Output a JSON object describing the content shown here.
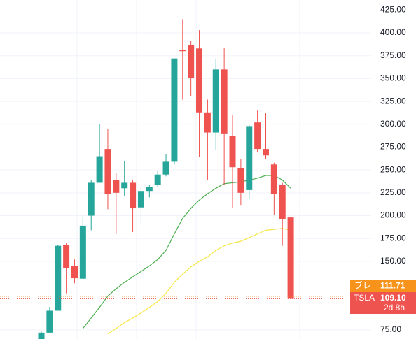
{
  "chart_data": {
    "type": "candlestick",
    "categories": [
      null,
      null,
      null,
      null,
      null,
      null,
      null,
      null,
      null,
      null,
      null,
      null,
      null,
      null,
      null,
      null,
      null,
      null,
      null,
      null,
      null,
      null,
      null,
      null,
      null,
      null,
      null,
      null,
      null,
      null,
      null
    ],
    "open": [
      65,
      72,
      96,
      168,
      145,
      131,
      200,
      236,
      273,
      239,
      230,
      236,
      209,
      227,
      234,
      245,
      259,
      381,
      387,
      383,
      313,
      291,
      360,
      287,
      252,
      228,
      302,
      273,
      256,
      234,
      198
    ],
    "high": [
      73,
      100,
      168,
      170,
      152,
      199,
      239,
      300,
      295,
      247,
      260,
      239,
      232,
      234,
      249,
      267,
      372,
      415,
      391,
      403,
      327,
      371,
      384,
      310,
      262,
      299,
      315,
      312,
      258,
      236,
      198
    ],
    "low": [
      60,
      72,
      96,
      115,
      126,
      131,
      184,
      236,
      207,
      180,
      221,
      182,
      190,
      220,
      231,
      243,
      256,
      327,
      331,
      264,
      239,
      272,
      234,
      208,
      211,
      218,
      270,
      262,
      201,
      167,
      109
    ],
    "close": [
      72,
      96,
      167,
      143,
      131.5,
      189,
      236,
      265,
      224,
      225,
      236,
      208,
      227,
      231,
      245,
      259,
      372,
      380,
      351,
      313,
      291,
      360,
      290,
      253,
      225,
      298,
      273,
      266,
      224,
      196,
      109.1
    ],
    "up_color": "#26a69a",
    "down_color": "#ef5350",
    "lines": [
      {
        "color": "#4caf50",
        "values": [
          null,
          null,
          null,
          null,
          null,
          76.6,
          88,
          99.6,
          112,
          120,
          127,
          133,
          139,
          145,
          152,
          162,
          180,
          197,
          208,
          217,
          224,
          230,
          235,
          236,
          237,
          239,
          241,
          244,
          244,
          239,
          230
        ]
      },
      {
        "color": "#f5e642",
        "values": [
          null,
          null,
          null,
          null,
          null,
          null,
          null,
          null,
          70.5,
          76.6,
          83,
          88,
          93.5,
          99.6,
          106,
          115,
          127,
          136,
          144,
          150,
          155,
          162,
          167,
          170,
          172,
          176,
          180,
          184,
          185,
          186,
          184
        ]
      }
    ],
    "ylim": [
      65,
      436
    ],
    "yticks": [
      {
        "value": 425,
        "label": "425.00"
      },
      {
        "value": 400,
        "label": "400.00"
      },
      {
        "value": 375,
        "label": "375.00"
      },
      {
        "value": 350,
        "label": "350.00"
      },
      {
        "value": 325,
        "label": "325.00"
      },
      {
        "value": 300,
        "label": "300.00"
      },
      {
        "value": 275,
        "label": "275.00"
      },
      {
        "value": 250,
        "label": "250.00"
      },
      {
        "value": 225,
        "label": "225.00"
      },
      {
        "value": 200,
        "label": "200.00"
      },
      {
        "value": 175,
        "label": "175.00"
      },
      {
        "value": 150,
        "label": "150.00"
      },
      {
        "value": 75,
        "label": "75.00"
      }
    ],
    "grid": true,
    "price_labels": [
      {
        "name": "ブレ",
        "value": 111.71,
        "color": "#f7931a"
      },
      {
        "name": "TSLA",
        "value": 109.1,
        "value_label": "109.10",
        "countdown": "2d 8h",
        "color": "#ef5350"
      }
    ]
  }
}
